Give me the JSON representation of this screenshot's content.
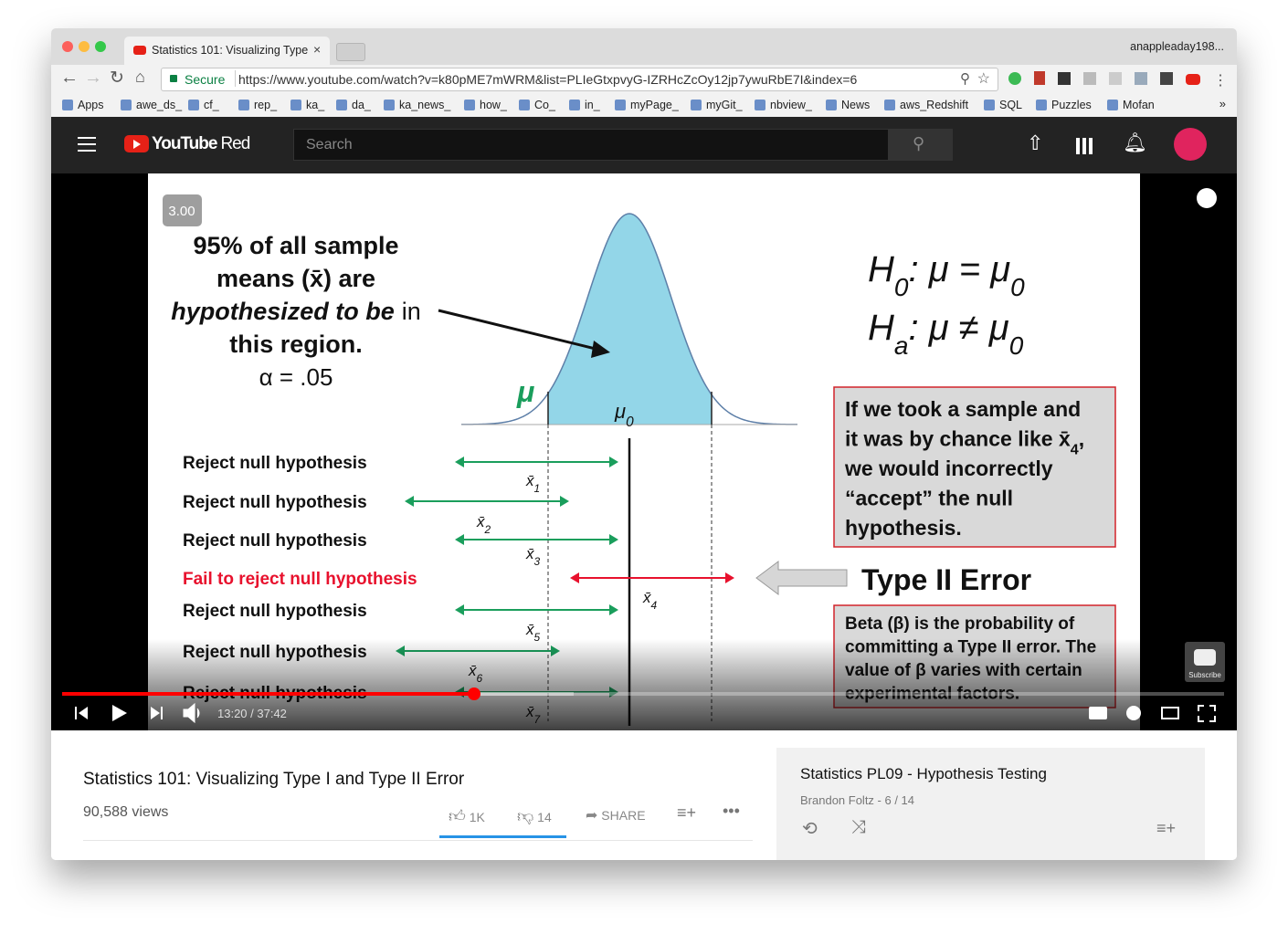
{
  "browser": {
    "tab_title": "Statistics 101: Visualizing Type",
    "profile": "anappleaday198...",
    "secure": "Secure",
    "url": "https://www.youtube.com/watch?v=k80pME7mWRM&list=PLIeGtxpvyG-IZRHcZcOy12jp7ywuRbE7I&index=6",
    "bookmarks": [
      "Apps",
      "awe_ds_",
      "cf_",
      "rep_",
      "ka_",
      "da_",
      "ka_news_",
      "how_",
      "Co_",
      "in_",
      "myPage_",
      "myGit_",
      "nbview_",
      "News",
      "aws_Redshift",
      "SQL",
      "Puzzles",
      "Mofan"
    ]
  },
  "youtube": {
    "logo": "YouTube",
    "logo_suffix": "Red",
    "search_placeholder": "Search"
  },
  "slide": {
    "badge": "3.00",
    "callout": {
      "line1": "95% of all sample",
      "line2": "means (x̄) are",
      "line3_emph": "hypothesized to be",
      "line3_rest": "in",
      "line4": "this region.",
      "alpha": "α = .05"
    },
    "mu": "μ",
    "mu0": [
      {
        "t": "μ"
      },
      {
        "t": "0",
        "sub": true
      }
    ],
    "h0": [
      {
        "t": "H"
      },
      {
        "t": "0",
        "sub": true
      },
      {
        "t": ": μ = μ"
      },
      {
        "t": "0",
        "sub": true
      }
    ],
    "ha": [
      {
        "t": "H"
      },
      {
        "t": "a",
        "sub": true
      },
      {
        "t": ": μ ≠ μ"
      },
      {
        "t": "0",
        "sub": true
      }
    ],
    "rows": [
      {
        "label": "Reject null hypothesis",
        "color": "#1a9e5c",
        "xbar": [
          {
            "t": "x̄"
          },
          {
            "t": "1",
            "sub": true
          }
        ]
      },
      {
        "label": "Reject null hypothesis",
        "color": "#1a9e5c",
        "xbar": [
          {
            "t": "x̄"
          },
          {
            "t": "2",
            "sub": true
          }
        ]
      },
      {
        "label": "Reject null hypothesis",
        "color": "#1a9e5c",
        "xbar": [
          {
            "t": "x̄"
          },
          {
            "t": "3",
            "sub": true
          }
        ]
      },
      {
        "label": "Fail to reject null hypothesis",
        "color": "#e8112d",
        "xbar": [
          {
            "t": "x̄"
          },
          {
            "t": "4",
            "sub": true
          }
        ]
      },
      {
        "label": "Reject null hypothesis",
        "color": "#1a9e5c",
        "xbar": [
          {
            "t": "x̄"
          },
          {
            "t": "5",
            "sub": true
          }
        ]
      },
      {
        "label": "Reject null hypothesis",
        "color": "#1a9e5c",
        "xbar": [
          {
            "t": "x̄"
          },
          {
            "t": "6",
            "sub": true
          }
        ]
      },
      {
        "label": "Reject null hypothesis",
        "color": "#1a9e5c",
        "xbar": [
          {
            "t": "x̄"
          },
          {
            "t": "7",
            "sub": true
          }
        ]
      }
    ],
    "box_lines": [
      [
        {
          "t": "If we took a sample and"
        }
      ],
      [
        {
          "t": "it was by chance like x̄"
        },
        {
          "t": "4",
          "sub": true
        },
        {
          "t": ","
        }
      ],
      [
        {
          "t": "we would incorrectly"
        }
      ],
      [
        {
          "t": "“accept” the null"
        }
      ],
      [
        {
          "t": "hypothesis."
        }
      ]
    ],
    "error_title": "Type II Error",
    "beta_lines": [
      "Beta (β) is the probability of",
      "committing a Type II error. The",
      "value of β varies with certain",
      "experimental factors."
    ]
  },
  "player": {
    "time": "13:20 / 37:42",
    "subscribe": "Subscribe"
  },
  "video_info": {
    "title": "Statistics 101: Visualizing Type I and Type II Error",
    "views": "90,588 views",
    "likes": "1K",
    "dislikes": "14",
    "share": "SHARE"
  },
  "playlist": {
    "title": "Statistics PL09 - Hypothesis Testing",
    "meta": "Brandon Foltz - 6 / 14"
  }
}
